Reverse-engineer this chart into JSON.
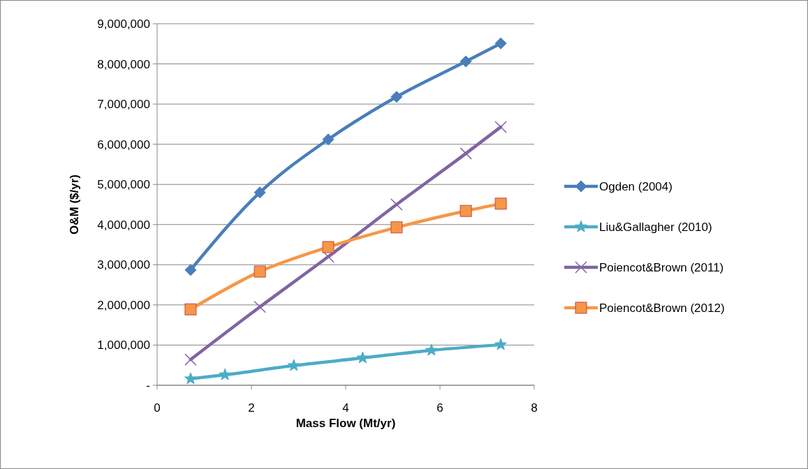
{
  "chart_data": {
    "type": "line",
    "xlabel": "Mass Flow (Mt/yr)",
    "ylabel": "O&M ($/yr)",
    "xlim": [
      0,
      8
    ],
    "xticks": [
      0,
      2,
      4,
      6,
      8
    ],
    "ylim": [
      0,
      9000000
    ],
    "yticks": [
      {
        "value": 0,
        "label": "-"
      },
      {
        "value": 1000000,
        "label": "1,000,000"
      },
      {
        "value": 2000000,
        "label": "2,000,000"
      },
      {
        "value": 3000000,
        "label": "3,000,000"
      },
      {
        "value": 4000000,
        "label": "4,000,000"
      },
      {
        "value": 5000000,
        "label": "5,000,000"
      },
      {
        "value": 6000000,
        "label": "6,000,000"
      },
      {
        "value": 7000000,
        "label": "7,000,000"
      },
      {
        "value": 8000000,
        "label": "8,000,000"
      },
      {
        "value": 9000000,
        "label": "9,000,000"
      }
    ],
    "grid": "y",
    "legend": "right",
    "series": [
      {
        "name": "Ogden (2004)",
        "color": "#4a7ebb",
        "marker": "diamond",
        "x": [
          0.71,
          2.18,
          3.63,
          5.08,
          6.55,
          7.29
        ],
        "values": [
          2870000,
          4800000,
          6120000,
          7180000,
          8060000,
          8510000
        ]
      },
      {
        "name": "Liu&Gallagher (2010)",
        "color": "#4bacc6",
        "marker": "star",
        "x": [
          0.71,
          1.44,
          2.9,
          4.36,
          5.82,
          7.29
        ],
        "values": [
          160000,
          260000,
          490000,
          680000,
          870000,
          1010000
        ]
      },
      {
        "name": "Poiencot&Brown (2011)",
        "color": "#8064a2",
        "marker": "cross",
        "x": [
          0.71,
          2.18,
          3.63,
          5.08,
          6.55,
          7.29
        ],
        "values": [
          640000,
          1950000,
          3200000,
          4500000,
          5770000,
          6430000
        ]
      },
      {
        "name": "Poiencot&Brown (2012)",
        "color": "#f79646",
        "marker": "square",
        "x": [
          0.71,
          2.18,
          3.63,
          5.08,
          6.55,
          7.29
        ],
        "values": [
          1890000,
          2830000,
          3440000,
          3930000,
          4340000,
          4520000
        ]
      }
    ]
  }
}
